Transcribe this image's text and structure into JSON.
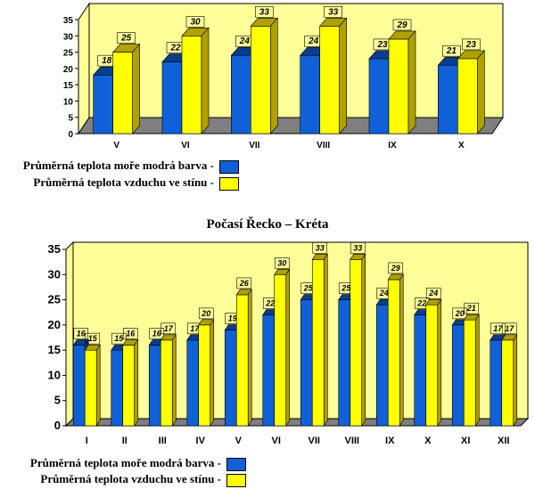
{
  "colors": {
    "sea": "#1060d8",
    "sea_dark": "#0a3d8f",
    "air": "#ffff00",
    "air_dark": "#b0a000",
    "wall": "#ffff99",
    "floor": "#7f7f7f"
  },
  "chart_data": [
    {
      "type": "bar",
      "title": "",
      "categories": [
        "V",
        "VI",
        "VII",
        "VIII",
        "IX",
        "X"
      ],
      "series": [
        {
          "name": "Průměrná teplota moře modrá barva -",
          "values": [
            18,
            22,
            24,
            24,
            23,
            21
          ]
        },
        {
          "name": "Průměrná teplota vzduchu ve stínu  -",
          "values": [
            25,
            30,
            33,
            33,
            29,
            23
          ]
        }
      ],
      "ylim": [
        0,
        35
      ],
      "yticks": [
        "0",
        "5",
        "10",
        "15",
        "20",
        "25",
        "30",
        "35"
      ],
      "grid": false,
      "legend_position": "bottom-left"
    },
    {
      "type": "bar",
      "title": "Počasí  Řecko – Kréta",
      "categories": [
        "I",
        "II",
        "III",
        "IV",
        "V",
        "VI",
        "VII",
        "VIII",
        "IX",
        "X",
        "XI",
        "XII"
      ],
      "series": [
        {
          "name": "Průměrná teplota moře modrá barva -",
          "values": [
            16,
            15,
            16,
            17,
            19,
            22,
            25,
            25,
            24,
            22,
            20,
            17
          ]
        },
        {
          "name": "Průměrná teplota vzduchu ve stínu  -",
          "values": [
            15,
            16,
            17,
            20,
            26,
            30,
            33,
            33,
            29,
            24,
            21,
            17
          ]
        }
      ],
      "ylim": [
        0,
        35
      ],
      "yticks": [
        "0",
        "5",
        "10",
        "15",
        "20",
        "25",
        "30",
        "35"
      ],
      "grid": false,
      "legend_position": "bottom-left"
    }
  ]
}
